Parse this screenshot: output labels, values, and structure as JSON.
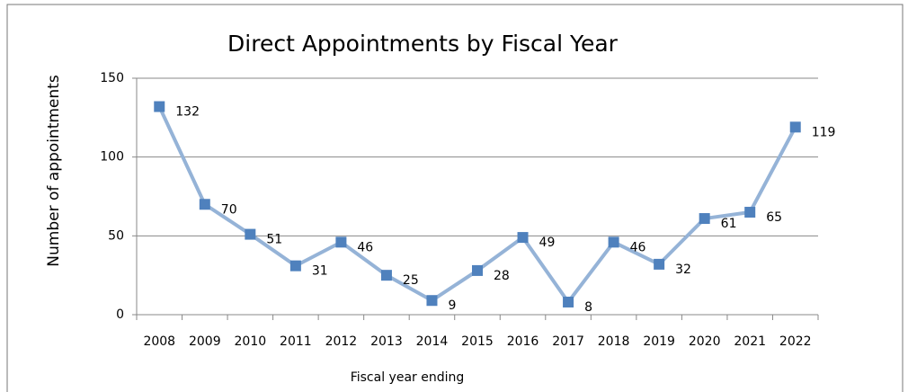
{
  "chart_data": {
    "type": "line",
    "title": "Direct Appointments by Fiscal Year",
    "x_label": "Fiscal year ending",
    "y_label": "Number of appointments",
    "categories": [
      "2008",
      "2009",
      "2010",
      "2011",
      "2012",
      "2013",
      "2014",
      "2015",
      "2016",
      "2017",
      "2018",
      "2019",
      "2020",
      "2021",
      "2022"
    ],
    "series": [
      {
        "name": "Direct Appointments",
        "line_color": "#95b3d7",
        "color": "#4f81bd",
        "values": [
          132,
          70,
          51,
          31,
          46,
          25,
          9,
          28,
          49,
          8,
          46,
          32,
          61,
          65,
          119
        ]
      }
    ],
    "ylim": [
      0,
      150
    ],
    "yticks": [
      0,
      50,
      100,
      150
    ],
    "grid": true
  }
}
